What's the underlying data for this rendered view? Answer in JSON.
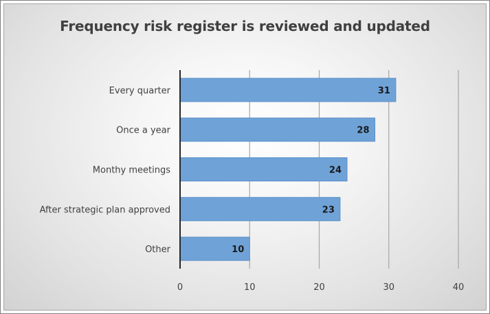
{
  "chart_data": {
    "type": "bar",
    "orientation": "horizontal",
    "title": "Frequency risk register is reviewed and updated",
    "categories": [
      "Every quarter",
      "Once a year",
      "Monthy meetings",
      "After strategic plan approved",
      "Other"
    ],
    "values": [
      31,
      28,
      24,
      23,
      10
    ],
    "xlim": [
      0,
      40
    ],
    "xticks": [
      "0",
      "10",
      "20",
      "30",
      "40"
    ],
    "grid": true,
    "legend": "none",
    "bar_color": "#6fa3d8",
    "bar_border_color": "#5b8fc9"
  }
}
